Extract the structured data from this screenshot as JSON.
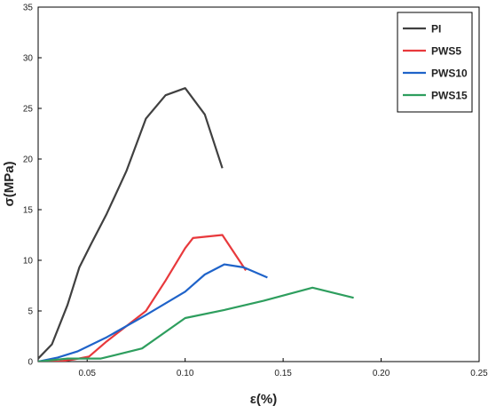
{
  "chart_data": {
    "type": "line",
    "title": "",
    "xlabel": "ε(%)",
    "ylabel": "σ(MPa)",
    "xlim": [
      0.025,
      0.25
    ],
    "ylim": [
      0,
      35
    ],
    "x_ticks": [
      0.05,
      0.1,
      0.15,
      0.2,
      0.25
    ],
    "x_tick_labels": [
      "0.05",
      "0.10",
      "0.15",
      "0.20",
      "0.25"
    ],
    "y_ticks": [
      0,
      5,
      10,
      15,
      20,
      25,
      30,
      35
    ],
    "y_tick_labels": [
      "0",
      "5",
      "10",
      "15",
      "20",
      "25",
      "30",
      "35"
    ],
    "grid": false,
    "legend_position": "top-right",
    "series": [
      {
        "name": "PI",
        "color": "#404040",
        "points": [
          [
            0.025,
            0.3
          ],
          [
            0.032,
            1.7
          ],
          [
            0.04,
            5.6
          ],
          [
            0.046,
            9.3
          ],
          [
            0.052,
            11.6
          ],
          [
            0.06,
            14.6
          ],
          [
            0.07,
            18.8
          ],
          [
            0.08,
            24.0
          ],
          [
            0.09,
            26.3
          ],
          [
            0.1,
            27.0
          ],
          [
            0.11,
            24.4
          ],
          [
            0.119,
            19.1
          ]
        ]
      },
      {
        "name": "PWS5",
        "color": "#e8393c",
        "points": [
          [
            0.025,
            0.0
          ],
          [
            0.035,
            0.0
          ],
          [
            0.043,
            0.2
          ],
          [
            0.051,
            0.5
          ],
          [
            0.06,
            2.0
          ],
          [
            0.07,
            3.5
          ],
          [
            0.08,
            5.0
          ],
          [
            0.09,
            8.0
          ],
          [
            0.1,
            11.2
          ],
          [
            0.104,
            12.2
          ],
          [
            0.119,
            12.5
          ],
          [
            0.131,
            9.0
          ]
        ]
      },
      {
        "name": "PWS10",
        "color": "#1f63c9",
        "points": [
          [
            0.025,
            0.0
          ],
          [
            0.035,
            0.4
          ],
          [
            0.045,
            1.0
          ],
          [
            0.06,
            2.4
          ],
          [
            0.08,
            4.6
          ],
          [
            0.1,
            6.9
          ],
          [
            0.11,
            8.6
          ],
          [
            0.12,
            9.6
          ],
          [
            0.13,
            9.3
          ],
          [
            0.142,
            8.3
          ]
        ]
      },
      {
        "name": "PWS15",
        "color": "#2e9e5e",
        "points": [
          [
            0.025,
            0.0
          ],
          [
            0.04,
            0.3
          ],
          [
            0.057,
            0.3
          ],
          [
            0.078,
            1.3
          ],
          [
            0.1,
            4.3
          ],
          [
            0.12,
            5.1
          ],
          [
            0.14,
            6.0
          ],
          [
            0.165,
            7.3
          ],
          [
            0.186,
            6.3
          ]
        ]
      }
    ]
  }
}
